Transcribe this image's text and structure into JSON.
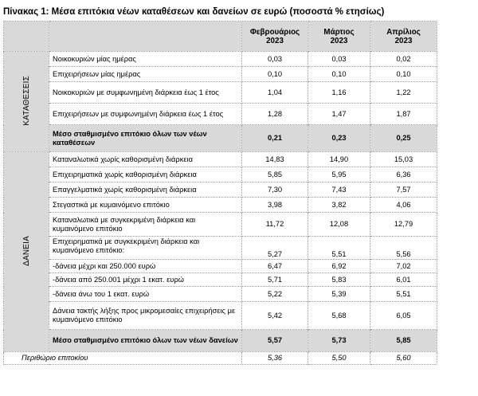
{
  "title": "Πίνακας 1: Μέσα επιτόκια νέων καταθέσεων και δανείων σε ευρώ (ποσοστά % ετησίως)",
  "columns": [
    {
      "l1": "Φεβρουάριος",
      "l2": "2023"
    },
    {
      "l1": "Μάρτιος",
      "l2": "2023"
    },
    {
      "l1": "Απρίλιος",
      "l2": "2023"
    }
  ],
  "deposits": {
    "category": "ΚΑΤΑΘΕΣΕΙΣ",
    "rows": [
      {
        "label": "Νοικοκυριών μίας ημέρας",
        "v": [
          "0,03",
          "0,03",
          "0,02"
        ]
      },
      {
        "label": "Επιχειρήσεων μίας ημέρας",
        "v": [
          "0,10",
          "0,10",
          "0,10"
        ]
      },
      {
        "label": "Νοικοκυριών με συμφωνημένη διάρκεια έως 1 έτος",
        "v": [
          "1,04",
          "1,16",
          "1,22"
        ]
      },
      {
        "label": "Επιχειρήσεων με συμφωνημένη διάρκεια έως 1 έτος",
        "v": [
          "1,28",
          "1,47",
          "1,87"
        ]
      }
    ],
    "total": {
      "label": "Μέσο σταθμισμένο επιτόκιο όλων των νέων καταθέσεων",
      "v": [
        "0,21",
        "0,23",
        "0,25"
      ]
    }
  },
  "loans": {
    "category": "ΔΑΝΕΙΑ",
    "rows": [
      {
        "label": "Καταναλωτικά χωρίς καθορισμένη διάρκεια",
        "v": [
          "14,83",
          "14,90",
          "15,03"
        ]
      },
      {
        "label": "Επιχειρηματικά χωρίς καθορισμένη διάρκεια",
        "v": [
          "5,85",
          "5,95",
          "6,36"
        ]
      },
      {
        "label": "Επαγγελματικά χωρίς καθορισμένη διάρκεια",
        "v": [
          "7,30",
          "7,43",
          "7,57"
        ]
      },
      {
        "label": "Στεγαστικά με κυμαινόμενο επιτόκιο",
        "v": [
          "3,98",
          "3,82",
          "4,06"
        ]
      },
      {
        "label": "Καταναλωτικά με συγκεκριμένη διάρκεια και κυμαινόμενο επιτόκιο",
        "v": [
          "11,72",
          "12,08",
          "12,79"
        ]
      },
      {
        "label": "Επιχειρηματικά με συγκεκριμένη διάρκεια και κυμαινόμενο επιτόκιο:",
        "v": [
          "5,27",
          "5,51",
          "5,56"
        ]
      },
      {
        "label": "-δάνεια μέχρι και 250.000 ευρώ",
        "v": [
          "6,47",
          "6,92",
          "7,02"
        ]
      },
      {
        "label": "-δάνεια από 250.001 μέχρι 1 εκατ. ευρώ",
        "v": [
          "5,71",
          "5,83",
          "6,01"
        ]
      },
      {
        "label": "-δάνεια άνω του 1 εκατ. ευρώ",
        "v": [
          "5,22",
          "5,39",
          "5,51"
        ]
      },
      {
        "label": "Δάνεια τακτής λήξης προς μικρομεσαίες επιχειρήσεις με κυμαινόμενο επιτόκιο",
        "v": [
          "5,42",
          "5,68",
          "6,05"
        ]
      }
    ],
    "total": {
      "label": "Μέσο σταθμισμένο επιτόκιο όλων των νέων δανείων",
      "v": [
        "5,57",
        "5,73",
        "5,85"
      ]
    }
  },
  "margin": {
    "label": "Περιθώριο επιτοκίου",
    "v": [
      "5,36",
      "5,50",
      "5,60"
    ]
  }
}
